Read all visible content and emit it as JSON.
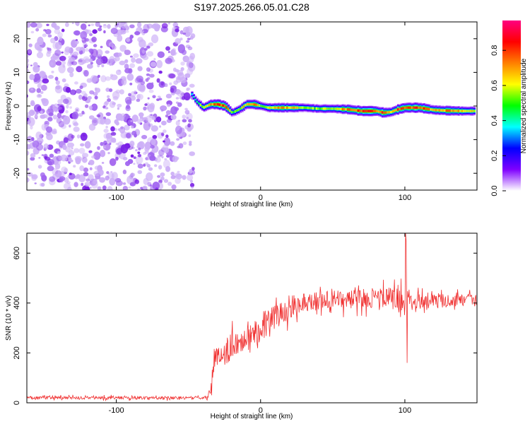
{
  "title": "S197.2025.266.05.01.C28",
  "chart_data": [
    {
      "type": "heatmap",
      "xlabel": "Height of straight line (km)",
      "ylabel": "Frequency (Hz)",
      "xlim": [
        -162,
        150
      ],
      "ylim": [
        -25,
        25
      ],
      "xticks": [
        -100,
        0,
        100
      ],
      "yticks": [
        -20,
        -10,
        0,
        10,
        20
      ],
      "colorbar": {
        "label": "Normalized spectral amplitude",
        "range": [
          0,
          0.97
        ],
        "ticks": [
          0.0,
          0.2,
          0.4,
          0.6,
          0.8
        ],
        "colors": [
          "#ffffff",
          "#7f00ff",
          "#0000ff",
          "#00ffff",
          "#00ff00",
          "#ffff00",
          "#ff7f00",
          "#ff0000",
          "#ff0080"
        ]
      },
      "noise_region": {
        "x": [
          -162,
          -48
        ],
        "amplitude_range": [
          0.0,
          0.1
        ]
      },
      "signal_ridge": {
        "x": [
          -48,
          -45,
          -40,
          -35,
          -30,
          -25,
          -20,
          -15,
          -10,
          -5,
          0,
          5,
          10,
          20,
          30,
          40,
          50,
          60,
          70,
          80,
          85,
          90,
          95,
          100,
          110,
          120,
          130,
          140,
          148
        ],
        "frequency": [
          3.5,
          1.5,
          -0.5,
          0.5,
          0.5,
          0.0,
          -2.0,
          -1.0,
          0.5,
          0.5,
          0.0,
          -0.5,
          -0.5,
          -0.5,
          -0.5,
          -0.8,
          -0.8,
          -1.0,
          -1.5,
          -1.5,
          -2.0,
          -1.8,
          -1.0,
          -0.5,
          -0.5,
          -1.2,
          -1.4,
          -1.5,
          -1.5
        ],
        "amplitude": [
          0.35,
          0.5,
          0.6,
          0.7,
          0.85,
          0.85,
          0.55,
          0.6,
          0.7,
          0.75,
          0.6,
          0.65,
          0.7,
          0.75,
          0.6,
          0.55,
          0.65,
          0.75,
          0.85,
          0.8,
          0.85,
          0.7,
          0.85,
          0.85,
          0.85,
          0.7,
          0.75,
          0.7,
          0.65
        ]
      }
    },
    {
      "type": "line",
      "xlabel": "Height of straight line (km)",
      "ylabel": "SNR (10 * v/v)",
      "xlim": [
        -162,
        150
      ],
      "ylim": [
        0,
        680
      ],
      "xticks": [
        -100,
        0,
        100
      ],
      "yticks": [
        0,
        200,
        400,
        600
      ],
      "series": [
        {
          "name": "SNR",
          "color": "#f03030",
          "x": [
            -162,
            -140,
            -120,
            -100,
            -80,
            -60,
            -45,
            -40,
            -37,
            -35,
            -33,
            -30,
            -25,
            -20,
            -15,
            -10,
            -5,
            0,
            5,
            10,
            15,
            20,
            25,
            30,
            40,
            50,
            60,
            70,
            80,
            85,
            90,
            95,
            100,
            105,
            110,
            120,
            130,
            140,
            150
          ],
          "center": [
            20,
            20,
            20,
            20,
            20,
            20,
            20,
            20,
            22,
            45,
            140,
            180,
            205,
            225,
            245,
            265,
            285,
            300,
            325,
            345,
            360,
            380,
            395,
            405,
            410,
            412,
            415,
            418,
            420,
            420,
            420,
            418,
            415,
            414,
            412,
            410,
            410,
            410,
            408
          ],
          "noise": [
            12,
            12,
            12,
            12,
            12,
            12,
            12,
            12,
            12,
            40,
            90,
            100,
            105,
            110,
            110,
            115,
            115,
            110,
            105,
            100,
            95,
            90,
            85,
            80,
            75,
            75,
            75,
            75,
            80,
            85,
            90,
            95,
            95,
            80,
            70,
            60,
            55,
            50,
            50
          ]
        }
      ],
      "spikes": [
        {
          "x": 100.5,
          "y": 680
        },
        {
          "x": 101.5,
          "y": 160
        },
        {
          "x": 101,
          "y": 650
        }
      ]
    }
  ]
}
